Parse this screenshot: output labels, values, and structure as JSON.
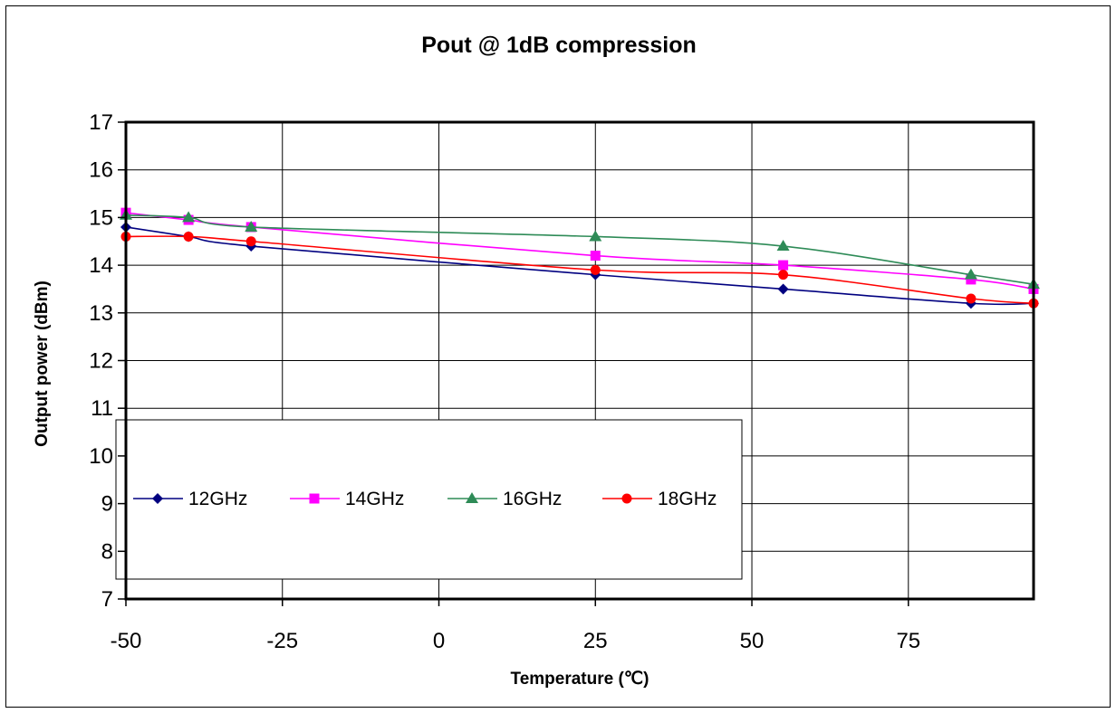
{
  "chart_data": {
    "type": "line",
    "title": "Pout @ 1dB compression",
    "xlabel": "Temperature (℃)",
    "ylabel": "Output power (dBm)",
    "xlim": [
      -50,
      95
    ],
    "ylim": [
      7,
      17
    ],
    "xticks": [
      -50,
      -25,
      0,
      25,
      50,
      75
    ],
    "yticks": [
      7,
      8,
      9,
      10,
      11,
      12,
      13,
      14,
      15,
      16,
      17
    ],
    "grid": true,
    "legend_position": "lower-left",
    "series": [
      {
        "name": "12GHz",
        "color": "#000080",
        "marker": "diamond",
        "x": [
          -50,
          -40,
          -30,
          25,
          55,
          85,
          95
        ],
        "y": [
          14.8,
          14.6,
          14.4,
          13.8,
          13.5,
          13.2,
          13.2
        ]
      },
      {
        "name": "14GHz",
        "color": "#FF00FF",
        "marker": "square",
        "x": [
          -50,
          -40,
          -30,
          25,
          55,
          85,
          95
        ],
        "y": [
          15.1,
          14.95,
          14.8,
          14.2,
          14.0,
          13.7,
          13.5
        ]
      },
      {
        "name": "16GHz",
        "color": "#2E8B57",
        "marker": "triangle",
        "x": [
          -50,
          -40,
          -30,
          25,
          55,
          85,
          95
        ],
        "y": [
          15.05,
          15.0,
          14.8,
          14.6,
          14.4,
          13.8,
          13.6
        ]
      },
      {
        "name": "18GHz",
        "color": "#FF0000",
        "marker": "circle",
        "x": [
          -50,
          -40,
          -30,
          25,
          55,
          85,
          95
        ],
        "y": [
          14.6,
          14.6,
          14.5,
          13.9,
          13.8,
          13.3,
          13.2
        ]
      }
    ]
  }
}
